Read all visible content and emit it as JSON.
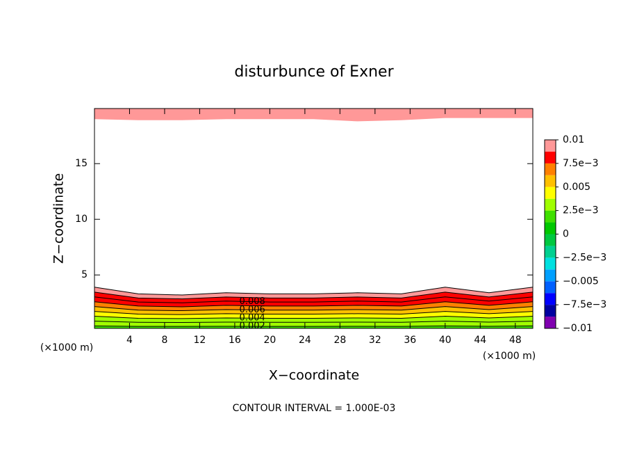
{
  "chart_data": {
    "type": "contour",
    "title": "disturbunce of Exner",
    "xlabel": "X−coordinate",
    "ylabel": "Z−coordinate",
    "x_unit": "(×1000 m)",
    "y_unit": "(×1000 m)",
    "footer": "CONTOUR INTERVAL = 1.000E-03",
    "xlim": [
      0,
      50
    ],
    "ylim": [
      0.2,
      19.95
    ],
    "xticks": [
      4,
      8,
      12,
      16,
      20,
      24,
      28,
      32,
      36,
      40,
      44,
      48
    ],
    "yticks": [
      5,
      10,
      15
    ],
    "x": [
      0,
      5,
      10,
      15,
      20,
      25,
      30,
      35,
      40,
      45,
      50
    ],
    "contours": [
      {
        "level": 0.002,
        "labeled": true,
        "z": [
          0.42,
          0.38,
          0.38,
          0.39,
          0.38,
          0.38,
          0.39,
          0.38,
          0.42,
          0.39,
          0.42
        ]
      },
      {
        "level": 0.003,
        "z": [
          0.85,
          0.75,
          0.73,
          0.76,
          0.75,
          0.75,
          0.76,
          0.75,
          0.85,
          0.76,
          0.85
        ]
      },
      {
        "level": 0.004,
        "labeled": true,
        "z": [
          1.29,
          1.11,
          1.08,
          1.14,
          1.11,
          1.11,
          1.14,
          1.11,
          1.29,
          1.14,
          1.29
        ]
      },
      {
        "level": 0.005,
        "z": [
          1.72,
          1.48,
          1.44,
          1.52,
          1.48,
          1.48,
          1.52,
          1.48,
          1.72,
          1.52,
          1.72
        ]
      },
      {
        "level": 0.006,
        "labeled": true,
        "z": [
          2.16,
          1.84,
          1.79,
          1.89,
          1.84,
          1.84,
          1.89,
          1.84,
          2.16,
          1.89,
          2.16
        ]
      },
      {
        "level": 0.007,
        "z": [
          2.59,
          2.21,
          2.14,
          2.27,
          2.21,
          2.21,
          2.27,
          2.21,
          2.59,
          2.27,
          2.59
        ]
      },
      {
        "level": 0.008,
        "labeled": true,
        "z": [
          3.03,
          2.57,
          2.5,
          2.65,
          2.57,
          2.57,
          2.65,
          2.57,
          3.03,
          2.65,
          3.03
        ]
      },
      {
        "level": 0.009,
        "z": [
          3.46,
          2.93,
          2.85,
          3.02,
          2.93,
          2.93,
          3.02,
          2.93,
          3.46,
          3.02,
          3.46
        ]
      },
      {
        "level": 0.01,
        "z": [
          3.9,
          3.3,
          3.2,
          3.4,
          3.3,
          3.3,
          3.4,
          3.3,
          3.9,
          3.4,
          3.9
        ]
      }
    ],
    "upper": {
      "level": 0.01,
      "z": [
        19.0,
        18.9,
        18.9,
        19.0,
        19.0,
        19.0,
        18.8,
        18.9,
        19.1,
        19.1,
        19.1
      ]
    },
    "clim": [
      -0.01,
      0.01
    ],
    "colors": [
      "#8000b0",
      "#0000a0",
      "#0000ff",
      "#0060ff",
      "#00a0ff",
      "#00e0e0",
      "#00d090",
      "#00c840",
      "#00c800",
      "#40e000",
      "#a0ff00",
      "#ffff00",
      "#ffc000",
      "#ff8000",
      "#ff0000",
      "#ff9898"
    ],
    "cticks": [
      {
        "value": 0.01,
        "label": "0.01"
      },
      {
        "value": 0.0075,
        "label": "7.5e−3"
      },
      {
        "value": 0.005,
        "label": "0.005"
      },
      {
        "value": 0.0025,
        "label": "2.5e−3"
      },
      {
        "value": 0,
        "label": "0"
      },
      {
        "value": -0.0025,
        "label": "−2.5e−3"
      },
      {
        "value": -0.005,
        "label": "−0.005"
      },
      {
        "value": -0.0075,
        "label": "−7.5e−3"
      },
      {
        "value": -0.01,
        "label": "−0.01"
      }
    ]
  }
}
